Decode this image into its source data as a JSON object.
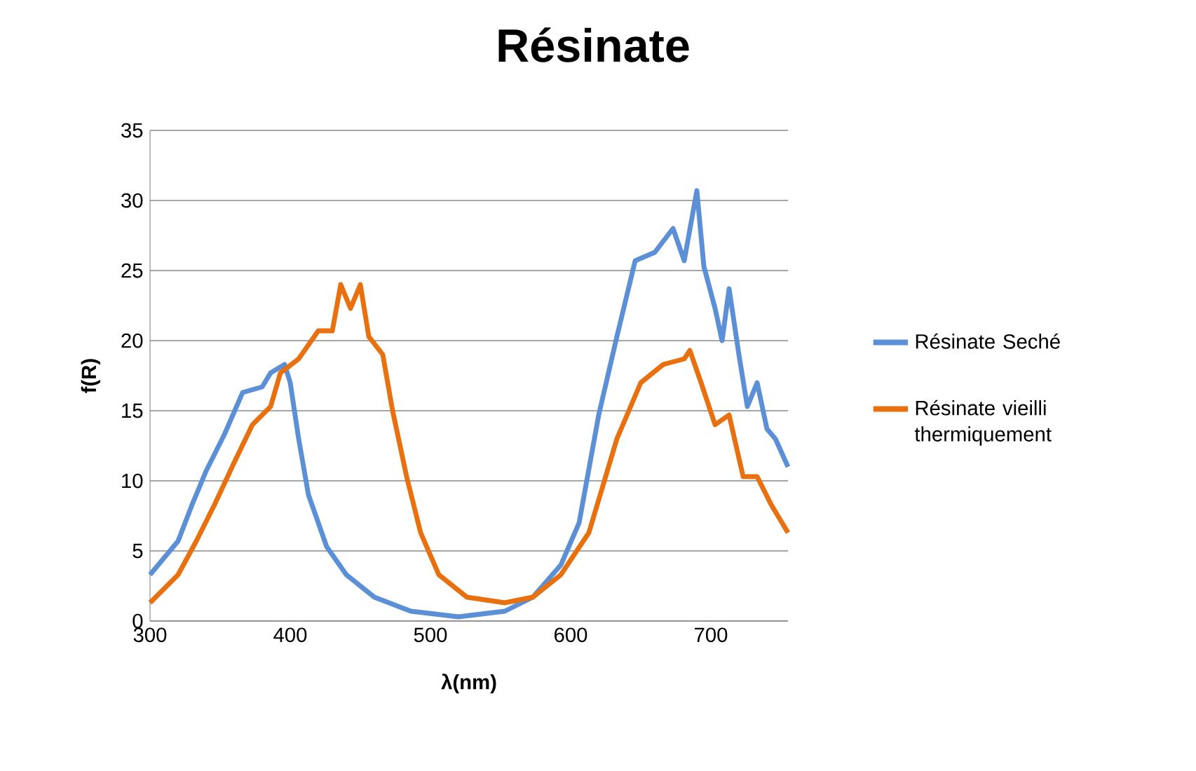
{
  "chart_data": {
    "type": "line",
    "title": "Résinate",
    "xlabel": "λ(nm)",
    "ylabel": "f(R)",
    "xlim": [
      300,
      755
    ],
    "xticks": [
      300,
      400,
      500,
      600,
      700
    ],
    "ylim": [
      0,
      35
    ],
    "yticks": [
      0,
      5,
      10,
      15,
      20,
      25,
      30,
      35
    ],
    "grid": "y",
    "legend": "right",
    "series": [
      {
        "name": "Résinate Seché",
        "color": "#5b8fd6",
        "x": [
          300,
          320,
          330,
          340,
          353,
          366,
          380,
          386,
          396,
          400,
          406,
          413,
          426,
          440,
          460,
          486,
          520,
          553,
          573,
          593,
          606,
          620,
          633,
          646,
          660,
          673,
          681,
          690,
          695,
          703,
          708,
          713,
          720,
          726,
          733,
          740,
          746,
          755
        ],
        "values": [
          3.3,
          5.7,
          8.3,
          10.7,
          13.3,
          16.3,
          16.7,
          17.7,
          18.3,
          17,
          13,
          9,
          5.3,
          3.3,
          1.7,
          0.7,
          0.3,
          0.7,
          1.7,
          4,
          7,
          14.7,
          20.3,
          25.7,
          26.3,
          28,
          25.7,
          30.7,
          25.3,
          22.3,
          20,
          23.7,
          19,
          15.3,
          17,
          13.7,
          13,
          11
        ]
      },
      {
        "name": "Résinate vieilli thermiquement",
        "color": "#e8700f",
        "x": [
          300,
          320,
          333,
          346,
          360,
          373,
          386,
          393,
          406,
          420,
          430,
          436,
          443,
          450,
          456,
          466,
          473,
          483,
          493,
          506,
          526,
          553,
          573,
          593,
          613,
          633,
          650,
          666,
          681,
          685,
          693,
          703,
          713,
          723,
          733,
          743,
          755
        ],
        "values": [
          1.3,
          3.3,
          5.7,
          8.3,
          11.3,
          14,
          15.3,
          17.7,
          18.7,
          20.7,
          20.7,
          24,
          22.3,
          24,
          20.3,
          19,
          15,
          10.3,
          6.3,
          3.3,
          1.7,
          1.3,
          1.7,
          3.3,
          6.3,
          13,
          17,
          18.3,
          18.7,
          19.3,
          17,
          14,
          14.7,
          10.3,
          10.3,
          8.3,
          6.3
        ]
      }
    ]
  }
}
